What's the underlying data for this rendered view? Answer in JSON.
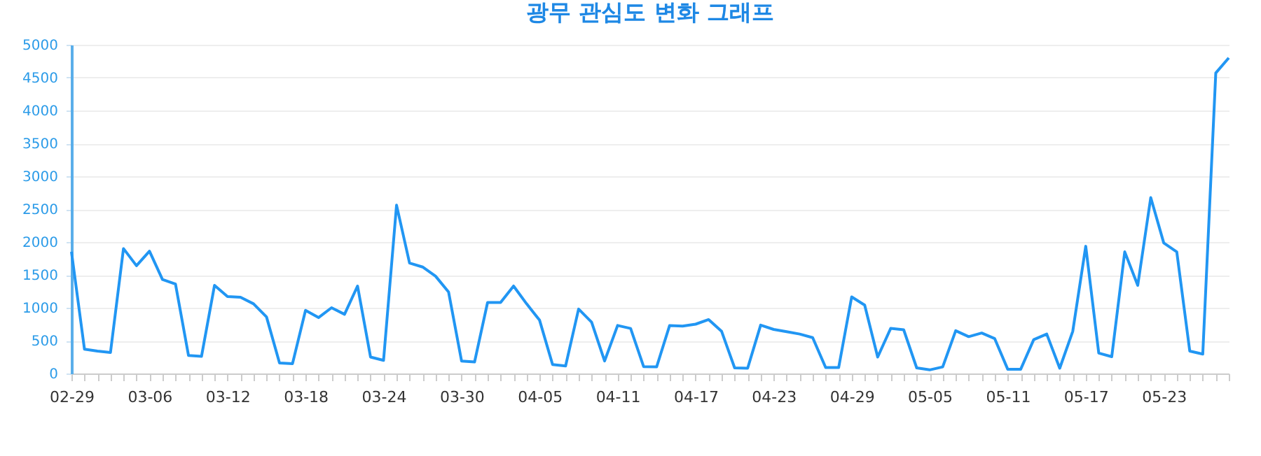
{
  "chart_data": {
    "type": "line",
    "title": "광무 관심도 변화 그래프",
    "categories": [
      "02-29",
      null,
      null,
      null,
      null,
      null,
      "03-06",
      null,
      null,
      null,
      null,
      null,
      "03-12",
      null,
      null,
      null,
      null,
      null,
      "03-18",
      null,
      null,
      null,
      null,
      null,
      "03-24",
      null,
      null,
      null,
      null,
      null,
      "03-30",
      null,
      null,
      null,
      null,
      null,
      "04-05",
      null,
      null,
      null,
      null,
      null,
      "04-11",
      null,
      null,
      null,
      null,
      null,
      "04-17",
      null,
      null,
      null,
      null,
      null,
      "04-23",
      null,
      null,
      null,
      null,
      null,
      "04-29",
      null,
      null,
      null,
      null,
      null,
      "05-05",
      null,
      null,
      null,
      null,
      null,
      "05-11",
      null,
      null,
      null,
      null,
      null,
      "05-17",
      null,
      null,
      null,
      null,
      null,
      "05-23",
      null,
      null,
      null,
      null,
      null
    ],
    "series": [
      {
        "color": "#2196f3",
        "values": [
          1850,
          370,
          340,
          320,
          1900,
          1640,
          1860,
          1430,
          1360,
          275,
          260,
          1340,
          1170,
          1160,
          1060,
          860,
          160,
          150,
          960,
          850,
          1000,
          900,
          1330,
          250,
          200,
          2560,
          1680,
          1620,
          1480,
          1240,
          190,
          175,
          1080,
          1080,
          1330,
          1060,
          810,
          135,
          115,
          980,
          780,
          190,
          730,
          685,
          105,
          100,
          730,
          720,
          750,
          820,
          640,
          85,
          80,
          735,
          670,
          635,
          600,
          545,
          90,
          90,
          1165,
          1040,
          250,
          685,
          665,
          85,
          55,
          100,
          650,
          560,
          615,
          530,
          65,
          65,
          515,
          600,
          80,
          640,
          1935,
          310,
          255,
          1850,
          1340,
          2675,
          1985,
          1850,
          340,
          295,
          4570,
          4800
        ]
      }
    ],
    "ylim": [
      0,
      5000
    ],
    "yticks": [
      0,
      500,
      1000,
      1500,
      2000,
      2500,
      3000,
      3500,
      4000,
      4500,
      5000
    ],
    "grid": "y"
  }
}
